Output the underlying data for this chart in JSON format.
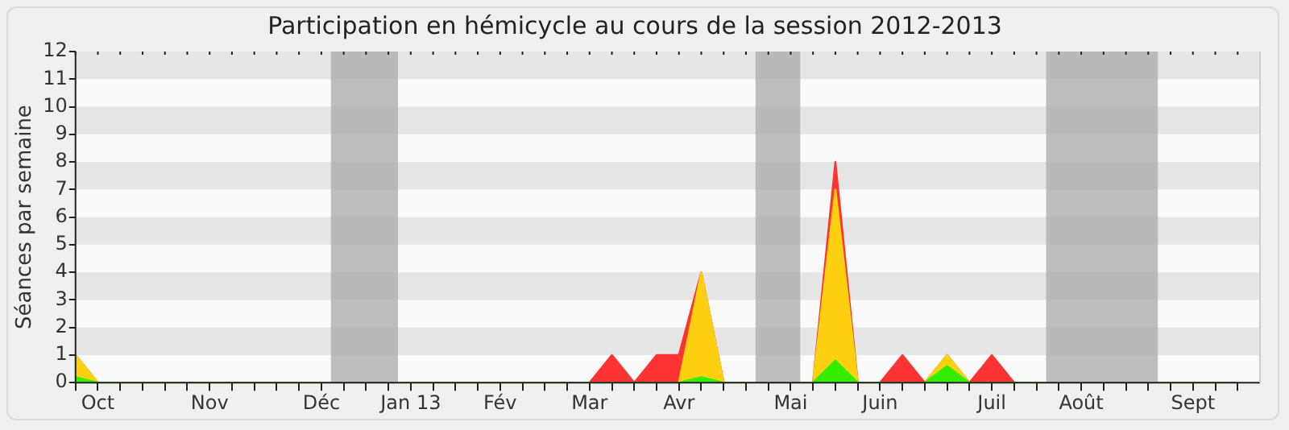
{
  "chart_data": {
    "type": "area",
    "title": "Participation en hémicycle au cours de la session 2012-2013",
    "ylabel": "Séances par semaine",
    "stacked": true,
    "legend": false,
    "x": [
      "2012-09-24",
      "2012-10-01",
      "2012-10-08",
      "2012-10-15",
      "2012-10-22",
      "2012-10-29",
      "2012-11-05",
      "2012-11-12",
      "2012-11-19",
      "2012-11-26",
      "2012-12-03",
      "2012-12-10",
      "2012-12-17",
      "2012-12-24",
      "2012-12-31",
      "2013-01-07",
      "2013-01-14",
      "2013-01-21",
      "2013-01-28",
      "2013-02-04",
      "2013-02-11",
      "2013-02-18",
      "2013-02-25",
      "2013-03-04",
      "2013-03-11",
      "2013-03-18",
      "2013-03-25",
      "2013-04-01",
      "2013-04-08",
      "2013-04-15",
      "2013-04-22",
      "2013-04-29",
      "2013-05-06",
      "2013-05-13",
      "2013-05-20",
      "2013-05-27",
      "2013-06-03",
      "2013-06-10",
      "2013-06-17",
      "2013-06-24",
      "2013-07-01",
      "2013-07-08",
      "2013-07-15",
      "2013-07-22",
      "2013-07-29",
      "2013-08-05",
      "2013-08-12",
      "2013-08-19",
      "2013-08-26",
      "2013-09-02",
      "2013-09-09",
      "2013-09-16",
      "2013-09-23"
    ],
    "xlim": [
      "2012-09-24",
      "2013-09-30"
    ],
    "xticks": [
      {
        "value": "2012-09-24",
        "label": null
      },
      {
        "value": "2012-10-01",
        "label": "Oct"
      },
      {
        "value": "2012-10-08",
        "label": null
      },
      {
        "value": "2012-10-15",
        "label": null
      },
      {
        "value": "2012-10-22",
        "label": null
      },
      {
        "value": "2012-10-29",
        "label": null
      },
      {
        "value": "2012-11-05",
        "label": "Nov"
      },
      {
        "value": "2012-11-12",
        "label": null
      },
      {
        "value": "2012-11-19",
        "label": null
      },
      {
        "value": "2012-11-26",
        "label": null
      },
      {
        "value": "2012-12-03",
        "label": null
      },
      {
        "value": "2012-12-10",
        "label": "Déc"
      },
      {
        "value": "2012-12-17",
        "label": null
      },
      {
        "value": "2012-12-24",
        "label": null
      },
      {
        "value": "2012-12-31",
        "label": null
      },
      {
        "value": "2013-01-07",
        "label": "Jan 13"
      },
      {
        "value": "2013-01-14",
        "label": null
      },
      {
        "value": "2013-01-21",
        "label": null
      },
      {
        "value": "2013-01-28",
        "label": null
      },
      {
        "value": "2013-02-04",
        "label": "Fév"
      },
      {
        "value": "2013-02-11",
        "label": null
      },
      {
        "value": "2013-02-18",
        "label": null
      },
      {
        "value": "2013-02-25",
        "label": null
      },
      {
        "value": "2013-03-04",
        "label": "Mar"
      },
      {
        "value": "2013-03-11",
        "label": null
      },
      {
        "value": "2013-03-18",
        "label": null
      },
      {
        "value": "2013-03-25",
        "label": null
      },
      {
        "value": "2013-04-01",
        "label": "Avr"
      },
      {
        "value": "2013-04-08",
        "label": null
      },
      {
        "value": "2013-04-15",
        "label": null
      },
      {
        "value": "2013-04-22",
        "label": null
      },
      {
        "value": "2013-04-29",
        "label": null
      },
      {
        "value": "2013-05-06",
        "label": "Mai"
      },
      {
        "value": "2013-05-13",
        "label": null
      },
      {
        "value": "2013-05-20",
        "label": null
      },
      {
        "value": "2013-05-27",
        "label": null
      },
      {
        "value": "2013-06-03",
        "label": "Juin"
      },
      {
        "value": "2013-06-10",
        "label": null
      },
      {
        "value": "2013-06-17",
        "label": null
      },
      {
        "value": "2013-06-24",
        "label": null
      },
      {
        "value": "2013-07-01",
        "label": null
      },
      {
        "value": "2013-07-08",
        "label": "Juil"
      },
      {
        "value": "2013-07-15",
        "label": null
      },
      {
        "value": "2013-07-22",
        "label": null
      },
      {
        "value": "2013-07-29",
        "label": null
      },
      {
        "value": "2013-08-05",
        "label": "Août"
      },
      {
        "value": "2013-08-12",
        "label": null
      },
      {
        "value": "2013-08-19",
        "label": null
      },
      {
        "value": "2013-08-26",
        "label": null
      },
      {
        "value": "2013-09-02",
        "label": null
      },
      {
        "value": "2013-09-09",
        "label": "Sept"
      },
      {
        "value": "2013-09-16",
        "label": null
      },
      {
        "value": "2013-09-23",
        "label": null
      }
    ],
    "ylim": [
      0,
      12
    ],
    "yticks": [
      0,
      1,
      2,
      3,
      4,
      5,
      6,
      7,
      8,
      9,
      10,
      11,
      12
    ],
    "bands": [
      {
        "axis": "x",
        "from": "2012-12-13",
        "to": "2013-01-03",
        "color": "#aaaaaa"
      },
      {
        "axis": "x",
        "from": "2013-04-25",
        "to": "2013-05-09",
        "color": "#aaaaaa"
      },
      {
        "axis": "x",
        "from": "2013-07-25",
        "to": "2013-08-29",
        "color": "#aaaaaa"
      }
    ],
    "series": [
      {
        "color": "#33ee00",
        "values": [
          0.2,
          0,
          0,
          0,
          0,
          0,
          0,
          0,
          0,
          0,
          0,
          0,
          0,
          0,
          0,
          0,
          0,
          0,
          0,
          0,
          0,
          0,
          0,
          0,
          0,
          0,
          0,
          0,
          0.2,
          0,
          0,
          0,
          0,
          0,
          0.8,
          0,
          0,
          0,
          0,
          0.6,
          0,
          0,
          0,
          0,
          0,
          0,
          0,
          0,
          0,
          0,
          0,
          0,
          0
        ]
      },
      {
        "color": "#ffd010",
        "values": [
          0.8,
          0,
          0,
          0,
          0,
          0,
          0,
          0,
          0,
          0,
          0,
          0,
          0,
          0,
          0,
          0,
          0,
          0,
          0,
          0,
          0,
          0,
          0,
          0,
          0,
          0,
          0,
          0,
          3.8,
          0,
          0,
          0,
          0,
          0,
          6.2,
          0,
          0,
          0,
          0,
          0.4,
          0,
          0,
          0,
          0,
          0,
          0,
          0,
          0,
          0,
          0,
          0,
          0,
          0
        ]
      },
      {
        "color": "#ff3333",
        "values": [
          0,
          0,
          0,
          0,
          0,
          0,
          0,
          0,
          0,
          0,
          0,
          0,
          0,
          0,
          0,
          0,
          0,
          0,
          0,
          0,
          0,
          0,
          0,
          0,
          1,
          0,
          1,
          1,
          0,
          0,
          0,
          0,
          0,
          0,
          1,
          0,
          0,
          1,
          0,
          0,
          0,
          1,
          0,
          0,
          0,
          0,
          0,
          0,
          0,
          0,
          0,
          0,
          0
        ]
      }
    ]
  }
}
